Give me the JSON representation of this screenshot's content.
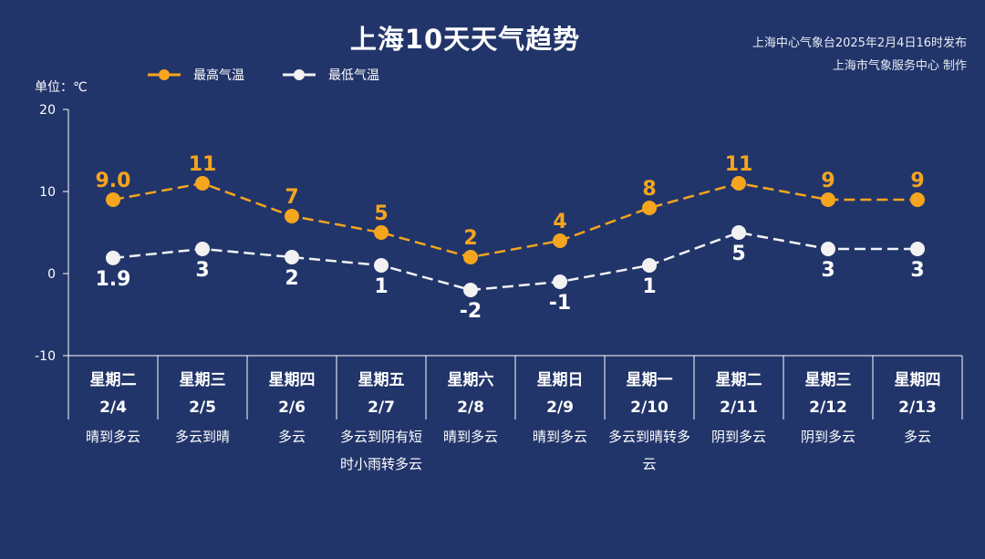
{
  "header": {
    "title": "上海10天天气趋势",
    "source_line1": "上海中心气象台2025年2月4日16时发布",
    "source_line2": "上海市气象服务中心 制作"
  },
  "unit_label": "单位：℃",
  "colors": {
    "background": "#22356a",
    "high": "#f5a51e",
    "low": "#f2f2f2",
    "axis": "#ffffff"
  },
  "chart_data": {
    "type": "line",
    "title": "上海10天天气趋势",
    "ylabel": "单位：℃",
    "ylim": [
      -10,
      20
    ],
    "yticks": [
      20,
      10,
      0,
      -10
    ],
    "grid": false,
    "legend_position": "top-left",
    "categories": [
      "2/4",
      "2/5",
      "2/6",
      "2/7",
      "2/8",
      "2/9",
      "2/10",
      "2/11",
      "2/12",
      "2/13"
    ],
    "days": [
      "星期二",
      "星期三",
      "星期四",
      "星期五",
      "星期六",
      "星期日",
      "星期一",
      "星期二",
      "星期三",
      "星期四"
    ],
    "weather": [
      "晴到多云",
      "多云到晴",
      "多云",
      "多云到阴有短时小雨转多云",
      "晴到多云",
      "晴到多云",
      "多云到晴转多云",
      "阴到多云",
      "阴到多云",
      "多云"
    ],
    "series": [
      {
        "name": "最高气温",
        "values": [
          9.0,
          11,
          7,
          5,
          2,
          4,
          8,
          11,
          9,
          9
        ],
        "labels": [
          "9.0",
          "11",
          "7",
          "5",
          "2",
          "4",
          "8",
          "11",
          "9",
          "9"
        ]
      },
      {
        "name": "最低气温",
        "values": [
          1.9,
          3,
          2,
          1,
          -2,
          -1,
          1,
          5,
          3,
          3
        ],
        "labels": [
          "1.9",
          "3",
          "2",
          "1",
          "-2",
          "-1",
          "1",
          "5",
          "3",
          "3"
        ]
      }
    ]
  }
}
